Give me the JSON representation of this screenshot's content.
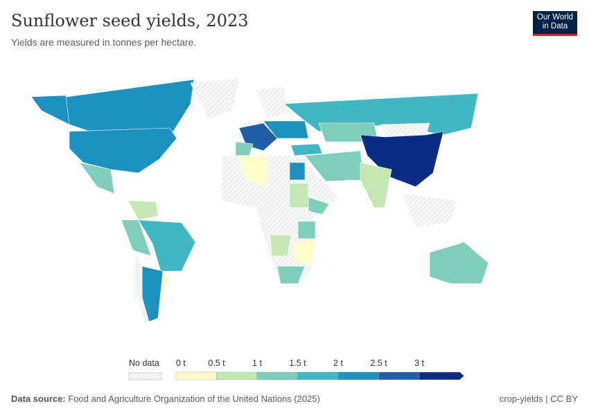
{
  "header": {
    "title": "Sunflower seed yields, 2023",
    "subtitle": "Yields are measured in tonnes per hectare."
  },
  "logo": {
    "line1": "Our World",
    "line2": "in Data",
    "bg": "#002147",
    "accent": "#ce261e"
  },
  "legend": {
    "no_data_label": "No data",
    "ticks": [
      "0 t",
      "0.5 t",
      "1 t",
      "1.5 t",
      "2 t",
      "2.5 t",
      "3 t"
    ],
    "bins": [
      {
        "min": 0,
        "max": 0.5,
        "color": "#fefcc8"
      },
      {
        "min": 0.5,
        "max": 1,
        "color": "#c5e7b3"
      },
      {
        "min": 1,
        "max": 1.5,
        "color": "#7fcdbb"
      },
      {
        "min": 1.5,
        "max": 2,
        "color": "#41b6c4"
      },
      {
        "min": 2,
        "max": 2.5,
        "color": "#1d91c0"
      },
      {
        "min": 2.5,
        "max": 3,
        "color": "#225ea8"
      },
      {
        "min": 3,
        "max": null,
        "color": "#0c2c84"
      }
    ]
  },
  "map": {
    "regions": [
      {
        "id": "canada",
        "yield": 2.2
      },
      {
        "id": "usa",
        "yield": 2.2
      },
      {
        "id": "alaska",
        "yield": 2.2
      },
      {
        "id": "greenland",
        "yield": null
      },
      {
        "id": "mexico",
        "yield": 1.2
      },
      {
        "id": "venezuela",
        "yield": 0.8
      },
      {
        "id": "brazil",
        "yield": 1.7
      },
      {
        "id": "peru-bolivia",
        "yield": 1.2
      },
      {
        "id": "argentina",
        "yield": 2.2
      },
      {
        "id": "chile",
        "yield": null
      },
      {
        "id": "uruguay",
        "yield": 0.4
      },
      {
        "id": "western-europe",
        "yield": 2.7
      },
      {
        "id": "spain",
        "yield": 1.3
      },
      {
        "id": "eastern-europe",
        "yield": 2.1
      },
      {
        "id": "turkey",
        "yield": 1.9
      },
      {
        "id": "scandinavia",
        "yield": null
      },
      {
        "id": "russia",
        "yield": 1.7
      },
      {
        "id": "kazakhstan",
        "yield": 1.2
      },
      {
        "id": "mongolia",
        "yield": null
      },
      {
        "id": "china",
        "yield": 3.2
      },
      {
        "id": "iran",
        "yield": 1.3
      },
      {
        "id": "arabia",
        "yield": null
      },
      {
        "id": "india",
        "yield": 0.8
      },
      {
        "id": "north-africa",
        "yield": null
      },
      {
        "id": "algeria",
        "yield": 0.3
      },
      {
        "id": "egypt",
        "yield": 2.1
      },
      {
        "id": "sudan",
        "yield": 0.7
      },
      {
        "id": "ethiopia",
        "yield": 1.3
      },
      {
        "id": "tanzania",
        "yield": 1.2
      },
      {
        "id": "angola",
        "yield": 0.8
      },
      {
        "id": "zambia-mozambique",
        "yield": 0.3
      },
      {
        "id": "south-africa",
        "yield": 1.3
      },
      {
        "id": "australia",
        "yield": 1.3
      },
      {
        "id": "southeast-asia",
        "yield": null
      }
    ]
  },
  "footer": {
    "source_label": "Data source:",
    "source": "Food and Agriculture Organization of the United Nations (2025)",
    "right": "crop-yields | CC BY"
  }
}
